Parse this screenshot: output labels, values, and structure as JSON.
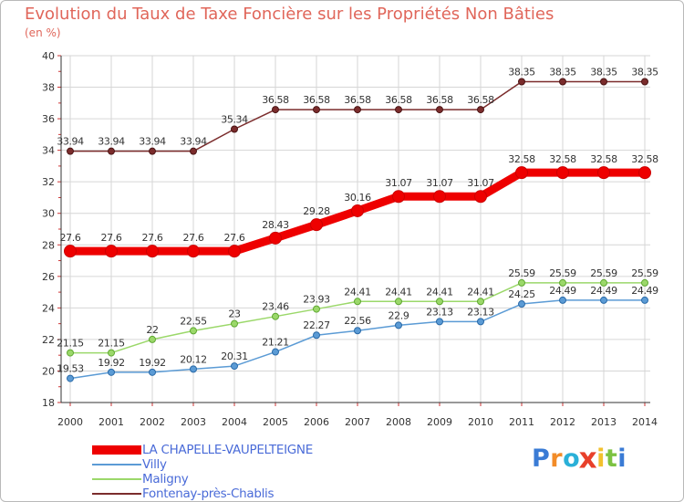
{
  "header": {
    "title": "Evolution du Taux de Taxe Foncière sur les Propriétés Non Bâties",
    "unit": "(en %)"
  },
  "chart_data": {
    "type": "line",
    "title": "Evolution du Taux de Taxe Foncière sur les Propriétés Non Bâties",
    "ylabel": "(en %)",
    "xlabel": "",
    "x": [
      "2000",
      "2001",
      "2002",
      "2003",
      "2004",
      "2005",
      "2006",
      "2007",
      "2008",
      "2009",
      "2010",
      "2011",
      "2012",
      "2013",
      "2014"
    ],
    "ylim": [
      18,
      40
    ],
    "yticks": [
      "18",
      "20",
      "22",
      "24",
      "26",
      "28",
      "30",
      "32",
      "34",
      "36",
      "38",
      "40"
    ],
    "grid": true,
    "legend": "bottom-left",
    "series": [
      {
        "name": "LA CHAPELLE-VAUPELTEIGNE",
        "color": "#ee0000",
        "values": [
          27.6,
          27.6,
          27.6,
          27.6,
          27.6,
          28.43,
          29.28,
          30.16,
          31.07,
          31.07,
          31.07,
          32.58,
          32.58,
          32.58,
          32.58
        ],
        "labels": [
          "27.6",
          "27.6",
          "27.6",
          "27.6",
          "27.6",
          "28.43",
          "29.28",
          "30.16",
          "31.07",
          "31.07",
          "31.07",
          "32.58",
          "32.58",
          "32.58",
          "32.58"
        ]
      },
      {
        "name": "Villy",
        "color": "#5b9bd5",
        "values": [
          19.53,
          19.92,
          19.92,
          20.12,
          20.31,
          21.21,
          22.27,
          22.56,
          22.9,
          23.13,
          23.13,
          24.25,
          24.49,
          24.49,
          24.49
        ],
        "labels": [
          "19.53",
          "19.92",
          "19.92",
          "20.12",
          "20.31",
          "21.21",
          "22.27",
          "22.56",
          "22.9",
          "23.13",
          "23.13",
          "24.25",
          "24.49",
          "24.49",
          "24.49"
        ]
      },
      {
        "name": "Maligny",
        "color": "#9bd86a",
        "values": [
          21.15,
          21.15,
          22,
          22.55,
          23,
          23.46,
          23.93,
          24.41,
          24.41,
          24.41,
          24.41,
          25.59,
          25.59,
          25.59,
          25.59
        ],
        "labels": [
          "21.15",
          "21.15",
          "22",
          "22.55",
          "23",
          "23.46",
          "23.93",
          "24.41",
          "24.41",
          "24.41",
          "24.41",
          "25.59",
          "25.59",
          "25.59",
          "25.59"
        ]
      },
      {
        "name": "Fontenay-près-Chablis",
        "color": "#7b2c2c",
        "values": [
          33.94,
          33.94,
          33.94,
          33.94,
          35.34,
          36.58,
          36.58,
          36.58,
          36.58,
          36.58,
          36.58,
          38.35,
          38.35,
          38.35,
          38.35
        ],
        "labels": [
          "33.94",
          "33.94",
          "33.94",
          "33.94",
          "35.34",
          "36.58",
          "36.58",
          "36.58",
          "36.58",
          "36.58",
          "36.58",
          "38.35",
          "38.35",
          "38.35",
          "38.35"
        ]
      }
    ]
  },
  "logo": {
    "letters": [
      "P",
      "r",
      "o",
      "x",
      "i",
      "t",
      "i"
    ],
    "colors": [
      "#3a7bd5",
      "#f28c28",
      "#2ab0d8",
      "#e8402a",
      "#f2c12e",
      "#7cc242",
      "#3a7bd5"
    ]
  }
}
